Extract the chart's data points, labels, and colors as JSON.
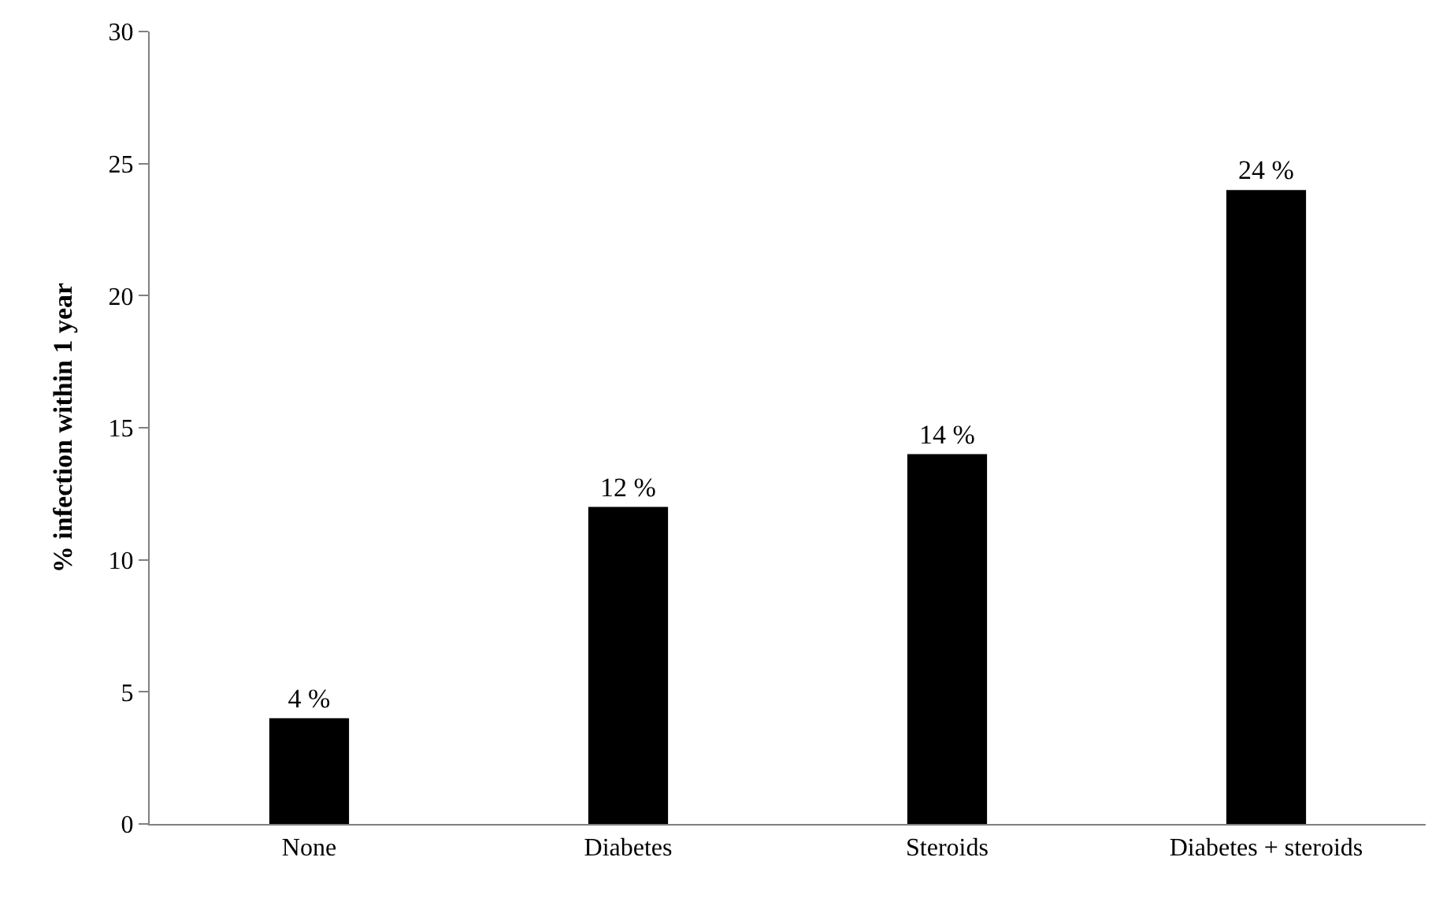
{
  "chart_data": {
    "type": "bar",
    "ylabel": "% infection within 1 year",
    "categories": [
      "None",
      "Diabetes",
      "Steroids",
      "Diabetes + steroids"
    ],
    "values": [
      4,
      12,
      14,
      24
    ],
    "value_labels": [
      "4 %",
      "12 %",
      "14 %",
      "24 %"
    ],
    "color": "#000000",
    "ylim": [
      0,
      30
    ],
    "yticks": [
      0,
      5,
      10,
      15,
      20,
      25,
      30
    ],
    "grid": false
  }
}
